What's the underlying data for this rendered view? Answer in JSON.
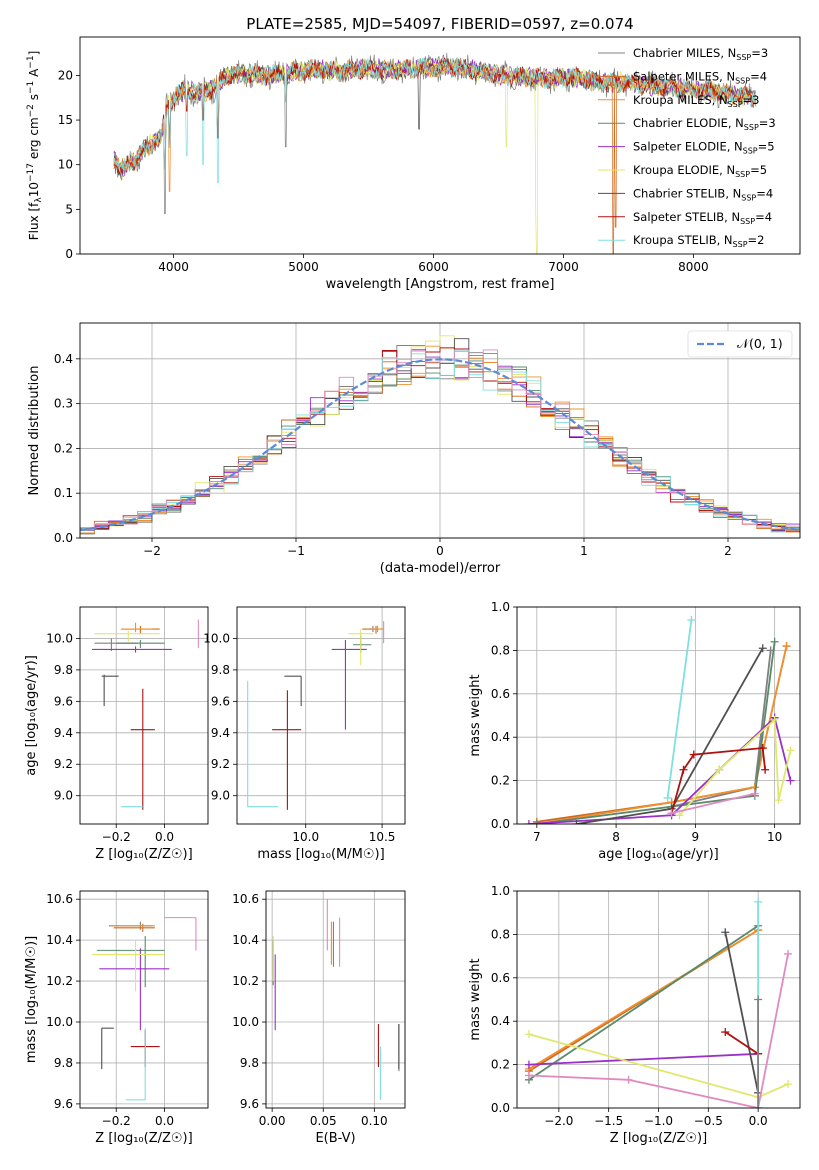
{
  "figure": {
    "title": "PLATE=2585, MJD=54097, FIBERID=0597, z=0.074"
  },
  "models": [
    {
      "name": "Chabrier MILES",
      "nssp": "3",
      "color": "#808080"
    },
    {
      "name": "Salpeter MILES",
      "nssp": "4",
      "color": "#d2691e"
    },
    {
      "name": "Kroupa MILES",
      "nssp": "3",
      "color": "#f09030"
    },
    {
      "name": "Chabrier ELODIE",
      "nssp": "3",
      "color": "#5a8a6a"
    },
    {
      "name": "Salpeter ELODIE",
      "nssp": "5",
      "color": "#9b30c8"
    },
    {
      "name": "Kroupa ELODIE",
      "nssp": "5",
      "color": "#dfe86a"
    },
    {
      "name": "Chabrier STELIB",
      "nssp": "4",
      "color": "#505050"
    },
    {
      "name": "Salpeter STELIB",
      "nssp": "4",
      "color": "#b01010"
    },
    {
      "name": "Kroupa STELIB",
      "nssp": "2",
      "color": "#80dfe0"
    }
  ],
  "colors": {
    "gaussian": "#5b8bd8",
    "pink": "#e08ac0",
    "grid": "#b0b0b0"
  },
  "chart_data": [
    {
      "id": "spectrum",
      "type": "line",
      "xlabel": "wavelength [Angstrom, rest frame]",
      "ylabel_main": "Flux [f",
      "ylabel_sub": "λ",
      "ylabel_rest": "10",
      "ylabel_sup1": "−17",
      "ylabel_after": " erg cm",
      "ylabel_sup2": "−2",
      "ylabel_s": " s",
      "ylabel_sup3": "−1",
      "ylabel_A": " A",
      "ylabel_sup4": "−1",
      "ylabel_close": "]",
      "xlim": [
        3280,
        8820
      ],
      "ylim": [
        0,
        24.3
      ],
      "xticks": [
        4000,
        5000,
        6000,
        7000,
        8000
      ],
      "yticks": [
        0,
        5,
        10,
        15,
        20
      ],
      "anchors": [
        [
          3540,
          10.5
        ],
        [
          3600,
          9.5
        ],
        [
          3700,
          10.5
        ],
        [
          3800,
          12.0
        ],
        [
          3900,
          13.0
        ],
        [
          3950,
          16.5
        ],
        [
          4000,
          17.5
        ],
        [
          4100,
          18.5
        ],
        [
          4200,
          18.0
        ],
        [
          4300,
          18.5
        ],
        [
          4400,
          19.8
        ],
        [
          4500,
          20.2
        ],
        [
          4700,
          20.0
        ],
        [
          4900,
          20.3
        ],
        [
          5100,
          20.7
        ],
        [
          5300,
          20.5
        ],
        [
          5500,
          20.8
        ],
        [
          5700,
          20.6
        ],
        [
          5900,
          20.8
        ],
        [
          6100,
          21.0
        ],
        [
          6300,
          20.6
        ],
        [
          6500,
          20.0
        ],
        [
          6700,
          19.8
        ],
        [
          6900,
          19.6
        ],
        [
          7100,
          19.8
        ],
        [
          7300,
          19.2
        ],
        [
          7500,
          19.2
        ],
        [
          7700,
          18.8
        ],
        [
          7900,
          18.6
        ],
        [
          8100,
          18.3
        ],
        [
          8300,
          17.8
        ],
        [
          8480,
          17.5
        ]
      ],
      "dips": [
        [
          3934,
          4.5,
          0
        ],
        [
          3969,
          7.0,
          2
        ],
        [
          4102,
          11.0,
          8
        ],
        [
          4227,
          10.0,
          8
        ],
        [
          4340,
          8.0,
          8
        ],
        [
          4861,
          12.0,
          0
        ],
        [
          5890,
          14.0,
          6
        ],
        [
          6563,
          12.0,
          5
        ],
        [
          6790,
          5.0,
          5
        ],
        [
          6795,
          0.0,
          5
        ],
        [
          7383,
          0.0,
          1
        ],
        [
          7400,
          3.0,
          1
        ]
      ]
    },
    {
      "id": "histogram",
      "type": "bar",
      "xlabel": "(data-model)/error",
      "ylabel": "Normed distribution",
      "xlim": [
        -2.5,
        2.5
      ],
      "ylim": [
        0,
        0.48
      ],
      "xticks": [
        -2,
        -1,
        0,
        1,
        2
      ],
      "xticklabels": [
        "−2",
        "−1",
        "0",
        "1",
        "2"
      ],
      "yticks": [
        0,
        0.1,
        0.2,
        0.3,
        0.4
      ],
      "yticklabels": [
        "0.0",
        "0.1",
        "0.2",
        "0.3",
        "0.4"
      ],
      "bin_width": 0.1,
      "legend": "𝒩(0, 1)",
      "legend_position": "top-right"
    },
    {
      "id": "age-z",
      "type": "scatter",
      "xlabel": "Z [log₁₀(Z/Z☉)]",
      "ylabel": "age  [log₁₀(age/yr)]",
      "xlim": [
        -0.35,
        0.18
      ],
      "ylim": [
        8.82,
        10.2
      ],
      "xticks": [
        -0.2,
        0.0
      ],
      "xticklabels": [
        "−0.2",
        "0.0"
      ],
      "yticks": [
        9.0,
        9.2,
        9.4,
        9.6,
        9.8,
        10.0
      ],
      "points": [
        {
          "c": 0,
          "x": -0.22,
          "y": 9.97,
          "xe": [
            0.07,
            0.11
          ],
          "ye": [
            0.05,
            0.03
          ]
        },
        {
          "c": 1,
          "x": -0.1,
          "y": 10.06,
          "xe": [
            0.08,
            0.08
          ],
          "ye": [
            0.03,
            0.02
          ]
        },
        {
          "c": 2,
          "x": -0.12,
          "y": 10.06,
          "xe": [
            0.06,
            0.07
          ],
          "ye": [
            0.02,
            0.04
          ]
        },
        {
          "c": 3,
          "x": -0.1,
          "y": 9.97,
          "xe": [
            0.1,
            0.1
          ],
          "ye": [
            0.03,
            0.02
          ]
        },
        {
          "c": 4,
          "x": -0.12,
          "y": 9.93,
          "xe": [
            0.18,
            0.15
          ],
          "ye": [
            0.02,
            0.02
          ]
        },
        {
          "c": 5,
          "x": -0.15,
          "y": 10.03,
          "xe": [
            0.14,
            0.13
          ],
          "ye": [
            0.05,
            0.02
          ]
        },
        {
          "c": 6,
          "x": -0.25,
          "y": 9.76,
          "xe": [
            0.01,
            0.06
          ],
          "ye": [
            0.19,
            0.01
          ]
        },
        {
          "c": 7,
          "x": -0.09,
          "y": 9.42,
          "xe": [
            0.05,
            0.05
          ],
          "ye": [
            0.51,
            0.26
          ]
        },
        {
          "c": 8,
          "x": -0.09,
          "y": 8.93,
          "xe": [
            0.09,
            0.0
          ],
          "ye": [
            0.0,
            0.0
          ]
        },
        {
          "c": 9,
          "x": 0.14,
          "y": 10.05,
          "xe": [
            0.0,
            0.0
          ],
          "ye": [
            0.11,
            0.07
          ]
        }
      ]
    },
    {
      "id": "age-mass",
      "type": "scatter",
      "xlabel": "mass [log₁₀(M/M☉)]",
      "ylabel": "",
      "xlim": [
        9.55,
        10.65
      ],
      "ylim": [
        8.82,
        10.2
      ],
      "xticks": [
        10.0,
        10.5
      ],
      "xticklabels": [
        "10.0",
        "10.5"
      ],
      "yticks": [
        9.0,
        9.2,
        9.4,
        9.6,
        9.8,
        10.0
      ],
      "points": [
        {
          "c": 0,
          "x": 10.44,
          "y": 10.06,
          "xe": [
            0.02,
            0.02
          ],
          "ye": [
            0.02,
            0.02
          ]
        },
        {
          "c": 1,
          "x": 10.46,
          "y": 10.06,
          "xe": [
            0.09,
            0.04
          ],
          "ye": [
            0.03,
            0.02
          ]
        },
        {
          "c": 2,
          "x": 10.47,
          "y": 10.06,
          "xe": [
            0.04,
            0.04
          ],
          "ye": [
            0.02,
            0.02
          ]
        },
        {
          "c": 3,
          "x": 10.36,
          "y": 9.96,
          "xe": [
            0.05,
            0.07
          ],
          "ye": [
            0.05,
            0.06
          ]
        },
        {
          "c": 4,
          "x": 10.26,
          "y": 9.93,
          "xe": [
            0.09,
            0.14
          ],
          "ye": [
            0.51,
            0.06
          ]
        },
        {
          "c": 5,
          "x": 10.36,
          "y": 10.03,
          "xe": [
            0.08,
            0.08
          ],
          "ye": [
            0.2,
            0.03
          ]
        },
        {
          "c": 6,
          "x": 9.97,
          "y": 9.76,
          "xe": [
            0.11,
            0.0
          ],
          "ye": [
            0.19,
            0.0
          ]
        },
        {
          "c": 7,
          "x": 9.88,
          "y": 9.42,
          "xe": [
            0.1,
            0.09
          ],
          "ye": [
            0.51,
            0.25
          ]
        },
        {
          "c": 8,
          "x": 9.62,
          "y": 8.93,
          "xe": [
            0.0,
            0.2
          ],
          "ye": [
            0.0,
            0.8
          ]
        },
        {
          "c": 9,
          "x": 10.51,
          "y": 10.05,
          "xe": [
            0.0,
            0.0
          ],
          "ye": [
            0.08,
            0.06
          ]
        }
      ]
    },
    {
      "id": "weight-age",
      "type": "line",
      "xlabel": "age  [log₁₀(age/yr)]",
      "ylabel": "mass weight",
      "xlim": [
        6.75,
        10.32
      ],
      "ylim": [
        0,
        1.0
      ],
      "xticks": [
        7,
        8,
        9,
        10
      ],
      "yticks": [
        0,
        0.2,
        0.4,
        0.6,
        0.8,
        1.0
      ],
      "yticklabels": [
        "0.0",
        "0.2",
        "0.4",
        "0.6",
        "0.8",
        "1.0"
      ],
      "series": [
        {
          "c": 0,
          "x": [
            8.7,
            9.75,
            9.95
          ],
          "y": [
            0.08,
            0.17,
            0.8
          ]
        },
        {
          "c": 1,
          "x": [
            7.0,
            8.7,
            9.75,
            10.15
          ],
          "y": [
            0.01,
            0.1,
            0.17,
            0.82
          ]
        },
        {
          "c": 2,
          "x": [
            7.0,
            8.7,
            9.75,
            10.15
          ],
          "y": [
            0.0,
            0.1,
            0.17,
            0.82
          ]
        },
        {
          "c": 3,
          "x": [
            7.0,
            8.7,
            9.75,
            10.0
          ],
          "y": [
            0.0,
            0.08,
            0.13,
            0.84
          ]
        },
        {
          "c": 4,
          "x": [
            6.9,
            8.7,
            9.3,
            10.0,
            10.2
          ],
          "y": [
            0.0,
            0.04,
            0.25,
            0.49,
            0.2
          ]
        },
        {
          "c": 5,
          "x": [
            8.8,
            9.3,
            10.0,
            10.05,
            10.2
          ],
          "y": [
            0.04,
            0.25,
            0.48,
            0.11,
            0.34
          ]
        },
        {
          "c": 6,
          "x": [
            7.5,
            8.7,
            9.85
          ],
          "y": [
            0.0,
            0.07,
            0.81
          ]
        },
        {
          "c": 7,
          "x": [
            8.7,
            8.85,
            8.98,
            9.85,
            9.88
          ],
          "y": [
            0.05,
            0.25,
            0.32,
            0.35,
            0.25
          ]
        },
        {
          "c": 8,
          "x": [
            8.65,
            8.95
          ],
          "y": [
            0.12,
            0.94
          ]
        },
        {
          "c": 9,
          "x": [
            8.7,
            9.75
          ],
          "y": [
            0.05,
            0.14
          ]
        }
      ]
    },
    {
      "id": "mass-z",
      "type": "scatter",
      "xlabel": "Z [log₁₀(Z/Z☉)]",
      "ylabel": "mass [log₁₀(M/M☉)]",
      "xlim": [
        -0.35,
        0.18
      ],
      "ylim": [
        9.58,
        10.64
      ],
      "xticks": [
        -0.2,
        0.0
      ],
      "xticklabels": [
        "−0.2",
        "0.0"
      ],
      "yticks": [
        9.6,
        9.8,
        10.0,
        10.2,
        10.4,
        10.6
      ],
      "points": [
        {
          "c": 0,
          "x": -0.1,
          "y": 10.47,
          "xe": [
            0.13,
            0.05
          ],
          "ye": [
            0.02,
            0.02
          ]
        },
        {
          "c": 1,
          "x": -0.09,
          "y": 10.46,
          "xe": [
            0.12,
            0.05
          ],
          "ye": [
            0.02,
            0.02
          ]
        },
        {
          "c": 2,
          "x": -0.09,
          "y": 10.47,
          "xe": [
            0.13,
            0.05
          ],
          "ye": [
            0.01,
            0.01
          ]
        },
        {
          "c": 3,
          "x": -0.08,
          "y": 10.35,
          "xe": [
            0.2,
            0.08
          ],
          "ye": [
            0.18,
            0.07
          ]
        },
        {
          "c": 4,
          "x": -0.1,
          "y": 10.26,
          "xe": [
            0.17,
            0.12
          ],
          "ye": [
            0.3,
            0.1
          ]
        },
        {
          "c": 5,
          "x": -0.12,
          "y": 10.33,
          "xe": [
            0.18,
            0.12
          ],
          "ye": [
            0.18,
            0.07
          ]
        },
        {
          "c": 6,
          "x": -0.26,
          "y": 9.97,
          "xe": [
            0.0,
            0.05
          ],
          "ye": [
            0.2,
            0.0
          ]
        },
        {
          "c": 7,
          "x": -0.08,
          "y": 9.88,
          "xe": [
            0.06,
            0.06
          ],
          "ye": [
            0.1,
            0.08
          ]
        },
        {
          "c": 8,
          "x": -0.08,
          "y": 9.62,
          "xe": [
            0.08,
            0.0
          ],
          "ye": [
            0.0,
            0.35
          ]
        },
        {
          "c": 9,
          "x": 0.13,
          "y": 10.51,
          "xe": [
            0.13,
            0.0
          ],
          "ye": [
            0.16,
            0.0
          ]
        }
      ]
    },
    {
      "id": "mass-ebv",
      "type": "scatter",
      "xlabel": "E(B-V)",
      "ylabel": "",
      "xlim": [
        -0.006,
        0.13
      ],
      "ylim": [
        9.58,
        10.64
      ],
      "xticks": [
        0.0,
        0.05,
        0.1
      ],
      "xticklabels": [
        "0.00",
        "0.05",
        "0.10"
      ],
      "yticks": [
        9.6,
        9.8,
        10.0,
        10.2,
        10.4,
        10.6
      ],
      "segments": [
        {
          "c": 0,
          "x": 0.124,
          "y1": 9.76,
          "y2": 9.99
        },
        {
          "c": 1,
          "x": 0.06,
          "y1": 10.27,
          "y2": 10.49
        },
        {
          "c": 2,
          "x": 0.058,
          "y1": 10.28,
          "y2": 10.49
        },
        {
          "c": 3,
          "x": 0.001,
          "y1": 10.18,
          "y2": 10.4
        },
        {
          "c": 4,
          "x": 0.003,
          "y1": 9.96,
          "y2": 10.33
        },
        {
          "c": 5,
          "x": 0.001,
          "y1": 10.2,
          "y2": 10.42
        },
        {
          "c": 6,
          "x": 0.124,
          "y1": 9.77,
          "y2": 9.99
        },
        {
          "c": 7,
          "x": 0.104,
          "y1": 9.78,
          "y2": 9.99
        },
        {
          "c": 8,
          "x": 0.106,
          "y1": 9.62,
          "y2": 9.88
        },
        {
          "c": 9,
          "x": 0.054,
          "y1": 10.35,
          "y2": 10.6
        },
        {
          "c": 9,
          "x": 0.066,
          "y1": 10.27,
          "y2": 10.51
        }
      ]
    },
    {
      "id": "weight-z",
      "type": "line",
      "xlabel": "Z [log₁₀(Z/Z☉)]",
      "ylabel": "mass weight",
      "xlim": [
        -2.42,
        0.42
      ],
      "ylim": [
        0,
        1.0
      ],
      "xticks": [
        -2.0,
        -1.5,
        -1.0,
        -0.5,
        0.0
      ],
      "xticklabels": [
        "−2.0",
        "−1.5",
        "−1.0",
        "−0.5",
        "0.0"
      ],
      "yticks": [
        0,
        0.2,
        0.4,
        0.6,
        0.8,
        1.0
      ],
      "yticklabels": [
        "0.0",
        "0.2",
        "0.4",
        "0.6",
        "0.8",
        "1.0"
      ],
      "series": [
        {
          "c": 1,
          "x": [
            -2.3,
            0.0
          ],
          "y": [
            0.17,
            0.82
          ]
        },
        {
          "c": 2,
          "x": [
            -2.3,
            0.0
          ],
          "y": [
            0.18,
            0.82
          ]
        },
        {
          "c": 3,
          "x": [
            -2.3,
            0.0
          ],
          "y": [
            0.13,
            0.84
          ]
        },
        {
          "c": 4,
          "x": [
            -2.3,
            0.0
          ],
          "y": [
            0.2,
            0.25
          ]
        },
        {
          "c": 5,
          "x": [
            -2.3,
            0.0,
            0.3
          ],
          "y": [
            0.34,
            0.05,
            0.11
          ]
        },
        {
          "c": 6,
          "x": [
            -0.33,
            0.0
          ],
          "y": [
            0.81,
            0.07
          ]
        },
        {
          "c": 7,
          "x": [
            -0.33,
            0.0
          ],
          "y": [
            0.35,
            0.25
          ]
        },
        {
          "c": 8,
          "x": [
            0.0,
            0.0
          ],
          "y": [
            0.0,
            0.95
          ]
        },
        {
          "c": 9,
          "x": [
            -2.3,
            -1.3,
            0.0,
            0.3
          ],
          "y": [
            0.15,
            0.13,
            0.0,
            0.71
          ]
        },
        {
          "c": 0,
          "x": [
            0.0,
            0.0
          ],
          "y": [
            0.0,
            0.5
          ]
        }
      ]
    }
  ]
}
